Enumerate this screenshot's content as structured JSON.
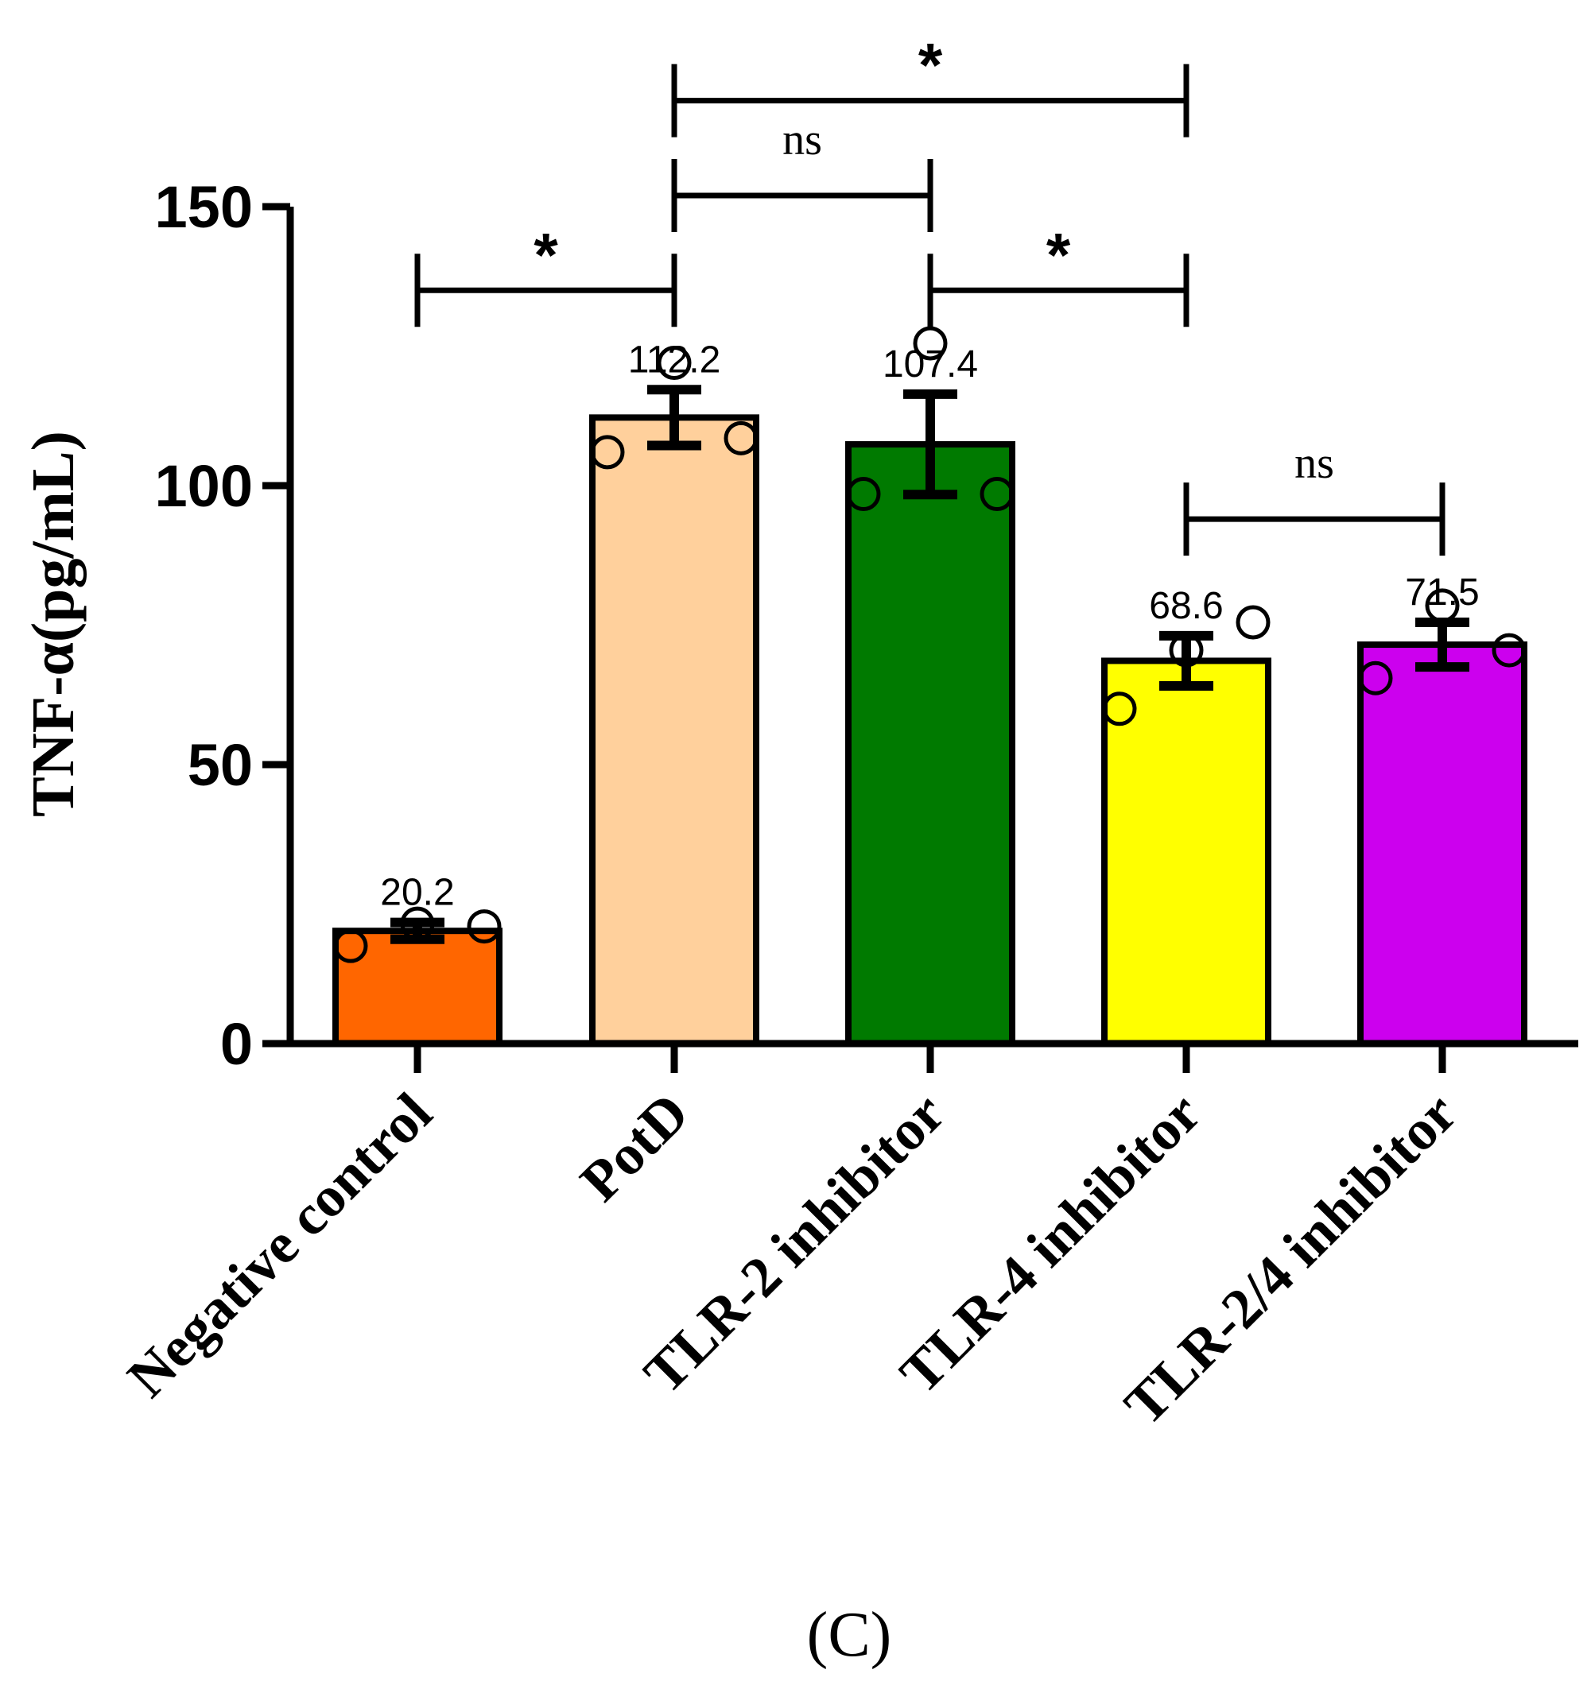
{
  "chart_data": {
    "type": "bar",
    "title": "",
    "xlabel": "",
    "ylabel": "TNF-α(pg/mL)",
    "ylim": [
      0,
      150
    ],
    "yticks": [
      0,
      50,
      100,
      150
    ],
    "grid": false,
    "categories": [
      "Negative control",
      "PotD",
      "TLR-2 inhibitor",
      "TLR-4 inhibitor",
      "TLR-2/4 inhibitor"
    ],
    "values": [
      20.2,
      112.2,
      107.4,
      68.6,
      71.5
    ],
    "value_labels": [
      "20.2",
      "112.2",
      "107.4",
      "68.6",
      "71.5"
    ],
    "errors": [
      1.5,
      5.0,
      9.0,
      4.5,
      4.0
    ],
    "colors": [
      "#FF6600",
      "#FFD09C",
      "#007A00",
      "#FFFF00",
      "#CC00EE"
    ],
    "points": [
      [
        17.5,
        21.5,
        21.0
      ],
      [
        106.0,
        122.0,
        108.5
      ],
      [
        98.5,
        125.5,
        98.5
      ],
      [
        60.0,
        70.5,
        75.5
      ],
      [
        65.5,
        78.5,
        70.5
      ]
    ],
    "significance": [
      {
        "from": 0,
        "to": 1,
        "y": 135,
        "label": "*"
      },
      {
        "from": 1,
        "to": 2,
        "y": 152,
        "label": "ns"
      },
      {
        "from": 1,
        "to": 3,
        "y": 169,
        "label": "*"
      },
      {
        "from": 2,
        "to": 3,
        "y": 135,
        "label": "*"
      },
      {
        "from": 3,
        "to": 4,
        "y": 94,
        "label": "ns"
      }
    ]
  },
  "panel_label": "(C)"
}
